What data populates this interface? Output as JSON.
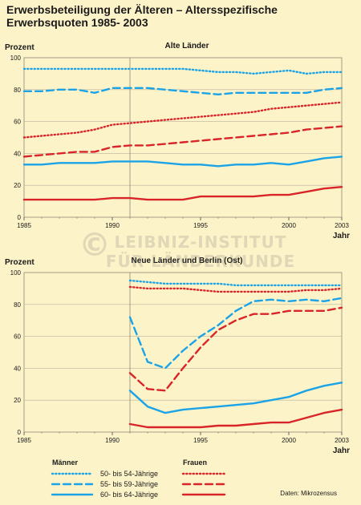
{
  "title": {
    "line1": "Erwerbsbeteiligung der Älteren – Altersspezifische",
    "line2": "Erwerbsquoten 1985- 2003"
  },
  "colors": {
    "men": "#1ba3e8",
    "women": "#d9252a",
    "background": "#fdf3c8",
    "grid": "#b9b29a"
  },
  "watermark": {
    "line1": "LEIBNIZ-INSTITUT",
    "line2": "FÜR LÄNDERKUNDE",
    "symbol": "©"
  },
  "legend": {
    "men_label": "Männer",
    "women_label": "Frauen",
    "rows": [
      "50- bis 54-Jährige",
      "55- bis 59-Jährige",
      "60- bis 64-Jährige"
    ],
    "row_styles": [
      "dotted",
      "dashed",
      "solid"
    ]
  },
  "source": "Daten: Mikrozensus",
  "chart_data": [
    {
      "type": "line",
      "title": "Alte Länder",
      "ylabel": "Prozent",
      "xlabel": "Jahr",
      "xlim": [
        1985,
        2003
      ],
      "ylim": [
        0,
        100
      ],
      "xticks": [
        1985,
        1990,
        1995,
        2000,
        2003
      ],
      "yticks": [
        0,
        20,
        40,
        60,
        80,
        100
      ],
      "marker_year": 1991,
      "series": [
        {
          "group": "Männer",
          "age": "50- bis 54-Jährige",
          "style": "dotted",
          "x": [
            1985,
            1986,
            1987,
            1988,
            1989,
            1990,
            1991,
            1992,
            1993,
            1994,
            1995,
            1996,
            1997,
            1998,
            1999,
            2000,
            2001,
            2002,
            2003
          ],
          "y": [
            93,
            93,
            93,
            93,
            93,
            93,
            93,
            93,
            93,
            93,
            92,
            91,
            91,
            90,
            91,
            92,
            90,
            91,
            91
          ]
        },
        {
          "group": "Männer",
          "age": "55- bis 59-Jährige",
          "style": "dashed",
          "x": [
            1985,
            1986,
            1987,
            1988,
            1989,
            1990,
            1991,
            1992,
            1993,
            1994,
            1995,
            1996,
            1997,
            1998,
            1999,
            2000,
            2001,
            2002,
            2003
          ],
          "y": [
            79,
            79,
            80,
            80,
            78,
            81,
            81,
            81,
            80,
            79,
            78,
            77,
            78,
            78,
            78,
            78,
            78,
            80,
            81
          ]
        },
        {
          "group": "Männer",
          "age": "60- bis 64-Jährige",
          "style": "solid",
          "x": [
            1985,
            1986,
            1987,
            1988,
            1989,
            1990,
            1991,
            1992,
            1993,
            1994,
            1995,
            1996,
            1997,
            1998,
            1999,
            2000,
            2001,
            2002,
            2003
          ],
          "y": [
            33,
            33,
            34,
            34,
            34,
            35,
            35,
            35,
            34,
            33,
            33,
            32,
            33,
            33,
            34,
            33,
            35,
            37,
            38
          ]
        },
        {
          "group": "Frauen",
          "age": "50- bis 54-Jährige",
          "style": "dotted",
          "x": [
            1985,
            1986,
            1987,
            1988,
            1989,
            1990,
            1991,
            1992,
            1993,
            1994,
            1995,
            1996,
            1997,
            1998,
            1999,
            2000,
            2001,
            2002,
            2003
          ],
          "y": [
            50,
            51,
            52,
            53,
            55,
            58,
            59,
            60,
            61,
            62,
            63,
            64,
            65,
            66,
            68,
            69,
            70,
            71,
            72
          ]
        },
        {
          "group": "Frauen",
          "age": "55- bis 59-Jährige",
          "style": "dashed",
          "x": [
            1985,
            1986,
            1987,
            1988,
            1989,
            1990,
            1991,
            1992,
            1993,
            1994,
            1995,
            1996,
            1997,
            1998,
            1999,
            2000,
            2001,
            2002,
            2003
          ],
          "y": [
            38,
            39,
            40,
            41,
            41,
            44,
            45,
            45,
            46,
            47,
            48,
            49,
            50,
            51,
            52,
            53,
            55,
            56,
            57
          ]
        },
        {
          "group": "Frauen",
          "age": "60- bis 64-Jährige",
          "style": "solid",
          "x": [
            1985,
            1986,
            1987,
            1988,
            1989,
            1990,
            1991,
            1992,
            1993,
            1994,
            1995,
            1996,
            1997,
            1998,
            1999,
            2000,
            2001,
            2002,
            2003
          ],
          "y": [
            11,
            11,
            11,
            11,
            11,
            12,
            12,
            11,
            11,
            11,
            13,
            13,
            13,
            13,
            14,
            14,
            16,
            18,
            19
          ]
        }
      ]
    },
    {
      "type": "line",
      "title": "Neue Länder und Berlin (Ost)",
      "ylabel": "Prozent",
      "xlabel": "Jahr",
      "xlim": [
        1985,
        2003
      ],
      "ylim": [
        0,
        100
      ],
      "xticks": [
        1985,
        1990,
        1995,
        2000,
        2003
      ],
      "yticks": [
        0,
        20,
        40,
        60,
        80,
        100
      ],
      "marker_year": 1991,
      "series": [
        {
          "group": "Männer",
          "age": "50- bis 54-Jährige",
          "style": "dotted",
          "x": [
            1991,
            1992,
            1993,
            1994,
            1995,
            1996,
            1997,
            1998,
            1999,
            2000,
            2001,
            2002,
            2003
          ],
          "y": [
            95,
            94,
            93,
            93,
            93,
            93,
            92,
            92,
            92,
            92,
            92,
            92,
            92
          ]
        },
        {
          "group": "Männer",
          "age": "55- bis 59-Jährige",
          "style": "dashed",
          "x": [
            1991,
            1992,
            1993,
            1994,
            1995,
            1996,
            1997,
            1998,
            1999,
            2000,
            2001,
            2002,
            2003
          ],
          "y": [
            72,
            44,
            40,
            51,
            60,
            67,
            76,
            82,
            83,
            82,
            83,
            82,
            84
          ]
        },
        {
          "group": "Männer",
          "age": "60- bis 64-Jährige",
          "style": "solid",
          "x": [
            1991,
            1992,
            1993,
            1994,
            1995,
            1996,
            1997,
            1998,
            1999,
            2000,
            2001,
            2002,
            2003
          ],
          "y": [
            26,
            16,
            12,
            14,
            15,
            16,
            17,
            18,
            20,
            22,
            26,
            29,
            31
          ]
        },
        {
          "group": "Frauen",
          "age": "50- bis 54-Jährige",
          "style": "dotted",
          "x": [
            1991,
            1992,
            1993,
            1994,
            1995,
            1996,
            1997,
            1998,
            1999,
            2000,
            2001,
            2002,
            2003
          ],
          "y": [
            91,
            90,
            90,
            90,
            89,
            88,
            88,
            88,
            88,
            88,
            89,
            89,
            90
          ]
        },
        {
          "group": "Frauen",
          "age": "55- bis 59-Jährige",
          "style": "dashed",
          "x": [
            1991,
            1992,
            1993,
            1994,
            1995,
            1996,
            1997,
            1998,
            1999,
            2000,
            2001,
            2002,
            2003
          ],
          "y": [
            37,
            27,
            26,
            40,
            53,
            64,
            70,
            74,
            74,
            76,
            76,
            76,
            78
          ]
        },
        {
          "group": "Frauen",
          "age": "60- bis 64-Jährige",
          "style": "solid",
          "x": [
            1991,
            1992,
            1993,
            1994,
            1995,
            1996,
            1997,
            1998,
            1999,
            2000,
            2001,
            2002,
            2003
          ],
          "y": [
            5,
            3,
            3,
            3,
            3,
            4,
            4,
            5,
            6,
            6,
            9,
            12,
            14
          ]
        }
      ]
    }
  ]
}
